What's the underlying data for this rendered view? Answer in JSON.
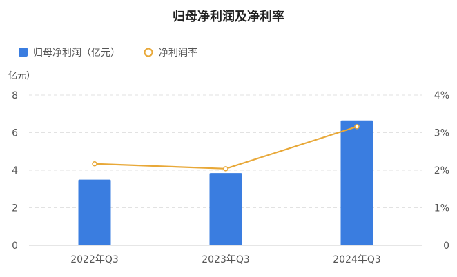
{
  "chart_data": {
    "type": "bar+line",
    "title": "归母净利润及净利率",
    "y_unit_label": "亿元）",
    "categories": [
      "2022年Q3",
      "2023年Q3",
      "2024年Q3"
    ],
    "series": [
      {
        "name": "归母净利润（亿元）",
        "type": "bar",
        "axis": "left",
        "values": [
          3.5,
          3.85,
          6.65
        ],
        "color": "#3a7de0"
      },
      {
        "name": "净利润率",
        "type": "line",
        "axis": "right",
        "values": [
          2.17,
          2.04,
          3.16
        ],
        "color": "#e8a838"
      }
    ],
    "y_left": {
      "ylim": [
        0,
        8
      ],
      "ticks": [
        "0",
        "2",
        "4",
        "6",
        "8"
      ]
    },
    "y_right": {
      "ylim": [
        0,
        4
      ],
      "ticks": [
        "0",
        "1%",
        "2%",
        "3%",
        "4%"
      ],
      "unit": "%"
    },
    "legend_position": "top-left",
    "grid": true
  }
}
